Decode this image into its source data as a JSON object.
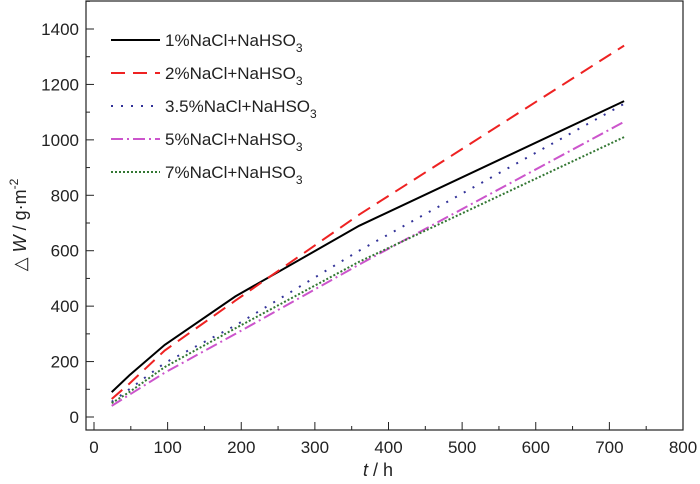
{
  "chart_data": {
    "type": "line",
    "title": "",
    "xlabel_italic": "t",
    "xlabel_rest": " / h",
    "ylabel_prefix": "△",
    "ylabel_italic": "W",
    "ylabel_rest": " / g·m",
    "ylabel_sup": "-2",
    "xlim": [
      0,
      800
    ],
    "ylim": [
      -30,
      1500
    ],
    "xticks": [
      0,
      100,
      200,
      300,
      400,
      500,
      600,
      700,
      800
    ],
    "yticks": [
      0,
      200,
      400,
      600,
      800,
      1000,
      1200,
      1400
    ],
    "grid": false,
    "legend_position": "top-left",
    "x": [
      24,
      48,
      96,
      192,
      360,
      720
    ],
    "series": [
      {
        "name": "1%NaCl+NaHSO",
        "sub": "3",
        "color": "#000000",
        "dash": "",
        "values": [
          90,
          150,
          260,
          435,
          690,
          1140
        ]
      },
      {
        "name": "2%NaCl+NaHSO",
        "sub": "3",
        "color": "#ee2222",
        "dash": "14,8",
        "values": [
          65,
          120,
          240,
          420,
          730,
          1340
        ]
      },
      {
        "name": "3.5%NaCl+NaHSO",
        "sub": "3",
        "color": "#333399",
        "dash": "2,8",
        "values": [
          55,
          100,
          195,
          330,
          600,
          1130
        ]
      },
      {
        "name": "5%NaCl+NaHSO",
        "sub": "3",
        "color": "#cc55cc",
        "dash": "12,4,2,4",
        "values": [
          40,
          80,
          160,
          300,
          550,
          1065
        ]
      },
      {
        "name": "7%NaCl+NaHSO",
        "sub": "3",
        "color": "#337733",
        "dash": "2,2",
        "values": [
          50,
          90,
          180,
          320,
          560,
          1010
        ]
      }
    ]
  }
}
